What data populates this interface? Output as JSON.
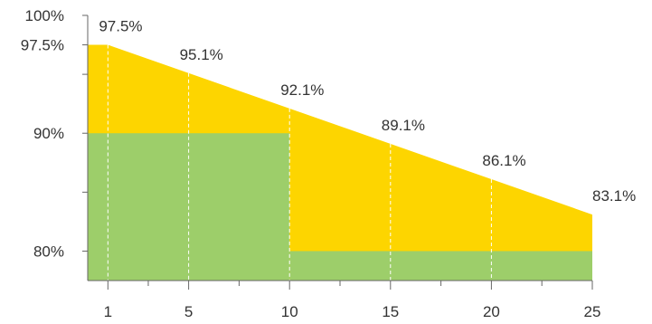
{
  "colors": {
    "warranty_area": "#fdd500",
    "guarantee_area": "#9dce6a",
    "axis": "#666666",
    "guide": "#ffffff",
    "text": "#333333"
  },
  "chart_data": {
    "type": "area",
    "xlim": [
      0,
      25
    ],
    "ylim": [
      77.5,
      100
    ],
    "x_ticks": [
      1,
      5,
      10,
      15,
      20,
      25
    ],
    "y_ticks": [
      {
        "value": 100,
        "label": "100%"
      },
      {
        "value": 97.5,
        "label": "97.5%"
      },
      {
        "value": 90,
        "label": "90%"
      },
      {
        "value": 80,
        "label": "80%"
      }
    ],
    "series": [
      {
        "type": "line-area",
        "points": [
          {
            "x": 0,
            "y": 97.5
          },
          {
            "x": 1,
            "y": 97.5
          },
          {
            "x": 25,
            "y": 83.1
          }
        ],
        "labeled_points": [
          {
            "x": 1,
            "y": 97.5,
            "label": "97.5%"
          },
          {
            "x": 5,
            "y": 95.1,
            "label": "95.1%"
          },
          {
            "x": 10,
            "y": 92.1,
            "label": "92.1%"
          },
          {
            "x": 15,
            "y": 89.1,
            "label": "89.1%"
          },
          {
            "x": 20,
            "y": 86.1,
            "label": "86.1%"
          },
          {
            "x": 25,
            "y": 83.1,
            "label": "83.1%"
          }
        ]
      },
      {
        "type": "step-area",
        "steps": [
          {
            "x_start": 0,
            "x_end": 10,
            "y": 90
          },
          {
            "x_start": 10,
            "x_end": 25,
            "y": 80
          }
        ]
      }
    ],
    "grid": false,
    "legend": "none"
  }
}
